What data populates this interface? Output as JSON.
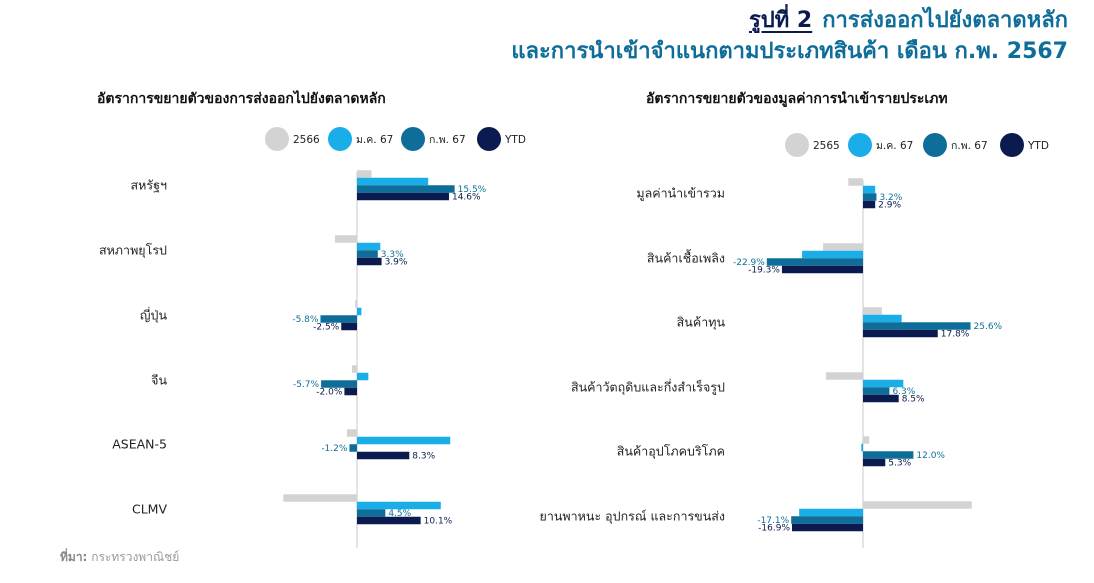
{
  "header": {
    "figure_number": "รูปที่ 2",
    "title_line1": "การส่งออกไปยังตลาดหลัก",
    "title_line2": "และการนำเข้าจำแนกตามประเภทสินค้า เดือน ก.พ. 2567"
  },
  "source": {
    "label": "ที่มา:",
    "text": "กระทรวงพาณิชย์"
  },
  "colors": {
    "gray": "#D3D3D3",
    "light": "#1AAEE8",
    "teal": "#0F6E99",
    "navy": "#0B1B4F"
  },
  "chart_data": [
    {
      "type": "bar",
      "orientation": "horizontal",
      "title": "อัตราการขยายตัวของการส่งออกไปยังตลาดหลัก",
      "legend": [
        "2566",
        "ม.ค. 67",
        "ก.พ. 67",
        "YTD"
      ],
      "categories": [
        "สหรัฐฯ",
        "สหภาพยุโรป",
        "ญี่ปุ่น",
        "จีน",
        "ASEAN-5",
        "CLMV"
      ],
      "series": [
        {
          "name": "2566",
          "values": [
            2.3,
            -3.5,
            -0.3,
            -0.8,
            -1.6,
            -11.7
          ]
        },
        {
          "name": "ม.ค. 67",
          "values": [
            11.3,
            3.7,
            0.7,
            1.8,
            14.8,
            13.3
          ]
        },
        {
          "name": "ก.พ. 67",
          "values": [
            15.5,
            3.3,
            -5.8,
            -5.7,
            -1.2,
            4.5
          ]
        },
        {
          "name": "YTD",
          "values": [
            14.6,
            3.9,
            -2.5,
            -2.0,
            8.3,
            10.1
          ]
        }
      ],
      "data_labels": [
        {
          "category": "สหรัฐฯ",
          "series": "ก.พ. 67",
          "text": "15.5%"
        },
        {
          "category": "สหรัฐฯ",
          "series": "YTD",
          "text": "14.6%"
        },
        {
          "category": "สหภาพยุโรป",
          "series": "ก.พ. 67",
          "text": "3.3%"
        },
        {
          "category": "สหภาพยุโรป",
          "series": "YTD",
          "text": "3.9%"
        },
        {
          "category": "ญี่ปุ่น",
          "series": "ก.พ. 67",
          "text": "-5.8%"
        },
        {
          "category": "ญี่ปุ่น",
          "series": "YTD",
          "text": "-2.5%"
        },
        {
          "category": "จีน",
          "series": "ก.พ. 67",
          "text": "-5.7%"
        },
        {
          "category": "จีน",
          "series": "YTD",
          "text": "-2.0%"
        },
        {
          "category": "ASEAN-5",
          "series": "ก.พ. 67",
          "text": "-1.2%"
        },
        {
          "category": "ASEAN-5",
          "series": "YTD",
          "text": "8.3%"
        },
        {
          "category": "CLMV",
          "series": "ก.พ. 67",
          "text": "4.5%"
        },
        {
          "category": "CLMV",
          "series": "YTD",
          "text": "10.1%"
        }
      ]
    },
    {
      "type": "bar",
      "orientation": "horizontal",
      "title": "อัตราการขยายตัวของมูลค่าการนำเข้ารายประเภท",
      "legend": [
        "2565",
        "ม.ค. 67",
        "ก.พ. 67",
        "YTD"
      ],
      "categories": [
        "มูลค่านำเข้ารวม",
        "สินค้าเชื้อเพลิง",
        "สินค้าทุน",
        "สินค้าวัตถุดิบและกึ่งสำเร็จรูป",
        "สินค้าอุปโภคบริโภค",
        "ยานพาหนะ อุปกรณ์ และการขนส่ง"
      ],
      "series": [
        {
          "name": "2565",
          "values": [
            -3.5,
            -9.5,
            4.5,
            -8.8,
            1.5,
            25.9
          ]
        },
        {
          "name": "ม.ค. 67",
          "values": [
            2.9,
            -14.5,
            9.2,
            9.6,
            -0.4,
            -15.2
          ]
        },
        {
          "name": "ก.พ. 67",
          "values": [
            3.2,
            -22.9,
            25.6,
            6.3,
            12.0,
            -17.1
          ]
        },
        {
          "name": "YTD",
          "values": [
            2.9,
            -19.3,
            17.8,
            8.5,
            5.3,
            -16.9
          ]
        }
      ],
      "data_labels": [
        {
          "category": "มูลค่านำเข้ารวม",
          "series": "ก.พ. 67",
          "text": "3.2%"
        },
        {
          "category": "มูลค่านำเข้ารวม",
          "series": "YTD",
          "text": "2.9%"
        },
        {
          "category": "สินค้าเชื้อเพลิง",
          "series": "ก.พ. 67",
          "text": "-22.9%"
        },
        {
          "category": "สินค้าเชื้อเพลิง",
          "series": "YTD",
          "text": "-19.3%"
        },
        {
          "category": "สินค้าทุน",
          "series": "ก.พ. 67",
          "text": "25.6%"
        },
        {
          "category": "สินค้าทุน",
          "series": "YTD",
          "text": "17.8%"
        },
        {
          "category": "สินค้าวัตถุดิบและกึ่งสำเร็จรูป",
          "series": "ก.พ. 67",
          "text": "6.3%"
        },
        {
          "category": "สินค้าวัตถุดิบและกึ่งสำเร็จรูป",
          "series": "YTD",
          "text": "8.5%"
        },
        {
          "category": "สินค้าอุปโภคบริโภค",
          "series": "ก.พ. 67",
          "text": "12.0%"
        },
        {
          "category": "สินค้าอุปโภคบริโภค",
          "series": "YTD",
          "text": "5.3%"
        },
        {
          "category": "ยานพาหนะ อุปกรณ์ และการขนส่ง",
          "series": "ก.พ. 67",
          "text": "-17.1%"
        },
        {
          "category": "ยานพาหนะ อุปกรณ์ และการขนส่ง",
          "series": "YTD",
          "text": "-16.9%"
        }
      ]
    }
  ]
}
